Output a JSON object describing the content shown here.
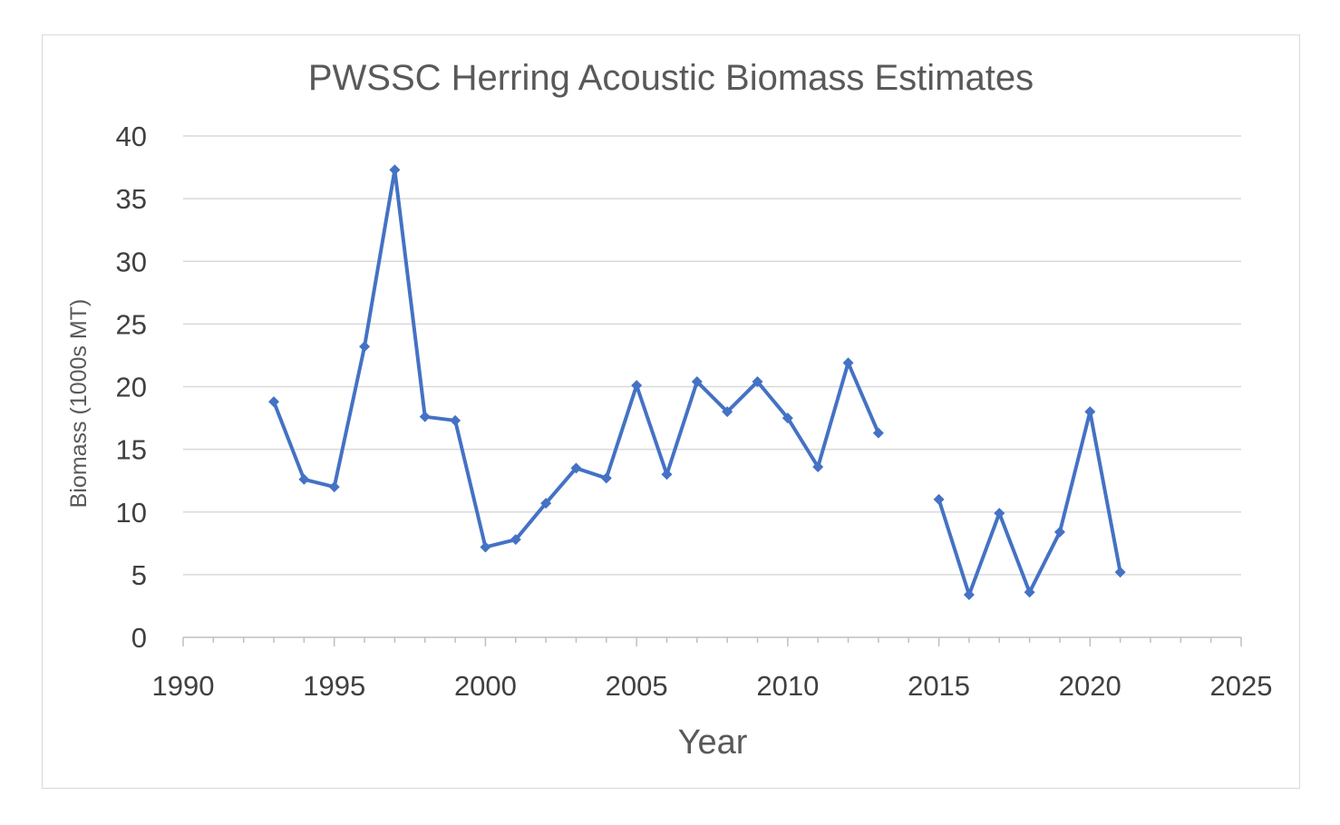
{
  "chart_data": {
    "type": "line",
    "title": "PWSSC Herring Acoustic Biomass Estimates",
    "xlabel": "Year",
    "ylabel": "Biomass (1000s MT)",
    "xlim": [
      1990,
      2025
    ],
    "ylim": [
      0,
      40
    ],
    "x_ticks": [
      1990,
      1995,
      2000,
      2005,
      2010,
      2015,
      2020,
      2025
    ],
    "y_ticks": [
      0,
      5,
      10,
      15,
      20,
      25,
      30,
      35,
      40
    ],
    "grid": "horizontal",
    "legend": "none",
    "line_color": "#4472c4",
    "series": [
      {
        "x": [
          1993,
          1994,
          1995,
          1996,
          1997,
          1998,
          1999,
          2000,
          2001,
          2002,
          2003,
          2004,
          2005,
          2006,
          2007,
          2008,
          2009,
          2010,
          2011,
          2012,
          2013,
          2015,
          2016,
          2017,
          2018,
          2019,
          2020,
          2021
        ],
        "values": [
          18.8,
          12.6,
          12.0,
          23.2,
          37.3,
          17.6,
          17.3,
          7.2,
          7.8,
          10.7,
          13.5,
          12.7,
          20.1,
          13.0,
          20.4,
          18.0,
          20.4,
          17.5,
          13.6,
          21.9,
          16.3,
          11.0,
          3.4,
          9.9,
          3.6,
          8.4,
          18.0,
          5.2
        ]
      }
    ]
  }
}
